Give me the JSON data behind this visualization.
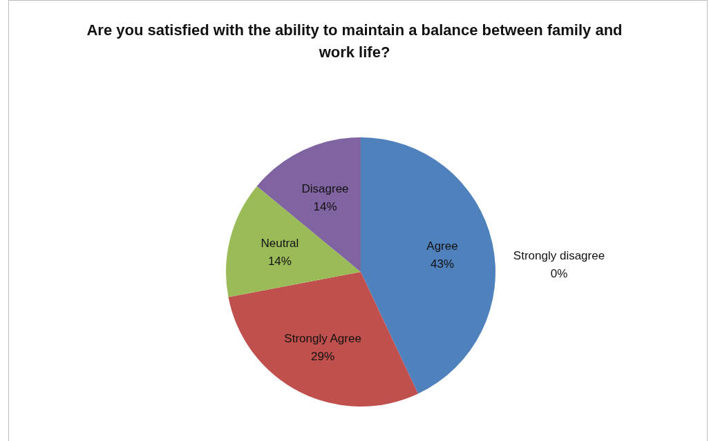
{
  "chart_data": {
    "type": "pie",
    "title": "Are you satisfied with the ability to maintain a balance between family and work life?",
    "categories": [
      "Agree",
      "Strongly Agree",
      "Neutral",
      "Disagree",
      "Strongly disagree"
    ],
    "values": [
      43,
      29,
      14,
      14,
      0
    ],
    "colors": [
      "#4f81bd",
      "#c0504d",
      "#9bbb59",
      "#8064a2",
      "#4bacc6"
    ],
    "value_labels": [
      "43%",
      "29%",
      "14%",
      "14%",
      "0%"
    ],
    "legend": false
  }
}
